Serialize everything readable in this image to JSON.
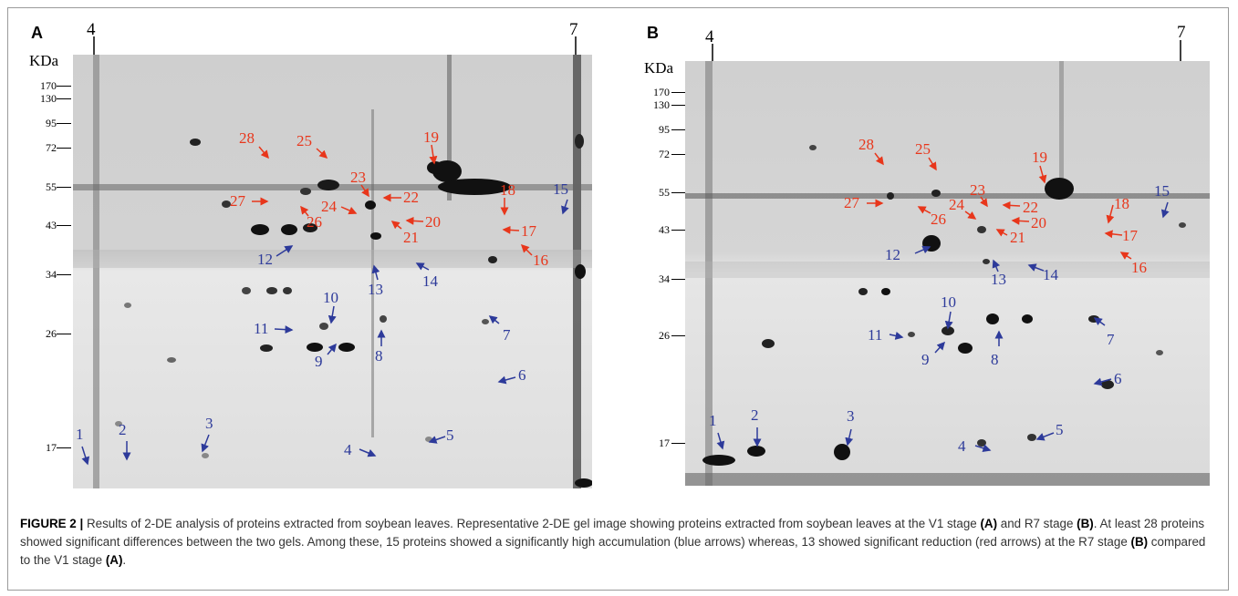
{
  "figure": {
    "panels": [
      {
        "letter": "A",
        "ph_left": "4",
        "ph_right": "7",
        "mw_unit": "KDa",
        "mw_markers": [
          "170",
          "130",
          "95",
          "72",
          "55",
          "43",
          "34",
          "26",
          "17"
        ],
        "red_labels": [
          "28",
          "25",
          "19",
          "23",
          "22",
          "18",
          "27",
          "24",
          "26",
          "20",
          "21",
          "17",
          "16"
        ],
        "blue_labels": [
          "15",
          "12",
          "13",
          "14",
          "10",
          "11",
          "7",
          "8",
          "9",
          "6",
          "1",
          "2",
          "3",
          "4",
          "5"
        ]
      },
      {
        "letter": "B",
        "ph_left": "4",
        "ph_right": "7",
        "mw_unit": "KDa",
        "mw_markers": [
          "170",
          "130",
          "95",
          "72",
          "55",
          "43",
          "34",
          "26",
          "17"
        ],
        "red_labels": [
          "28",
          "25",
          "19",
          "27",
          "23",
          "22",
          "24",
          "26",
          "20",
          "21",
          "18",
          "17",
          "16"
        ],
        "blue_labels": [
          "15",
          "12",
          "13",
          "14",
          "10",
          "11",
          "9",
          "8",
          "7",
          "6",
          "1",
          "2",
          "3",
          "4",
          "5"
        ]
      }
    ],
    "colors": {
      "increase_arrow": "#2d3a9a",
      "decrease_arrow": "#e8361b"
    },
    "caption": {
      "label": "FIGURE 2 |",
      "p1": " Results of 2-DE analysis of proteins extracted from soybean leaves. Representative 2-DE gel image showing proteins extracted from soybean leaves at the V1 stage ",
      "b1": "(A)",
      "p2": " and R7 stage ",
      "b2": "(B)",
      "p3": ". At least 28 proteins showed significant differences between the two gels. Among these, 15 proteins showed a significantly high accumulation (blue arrows) whereas, 13 showed significant reduction (red arrows) at the R7 stage ",
      "b3": "(B)",
      "p4": " compared to the V1 stage ",
      "b4": "(A)",
      "p5": "."
    }
  }
}
